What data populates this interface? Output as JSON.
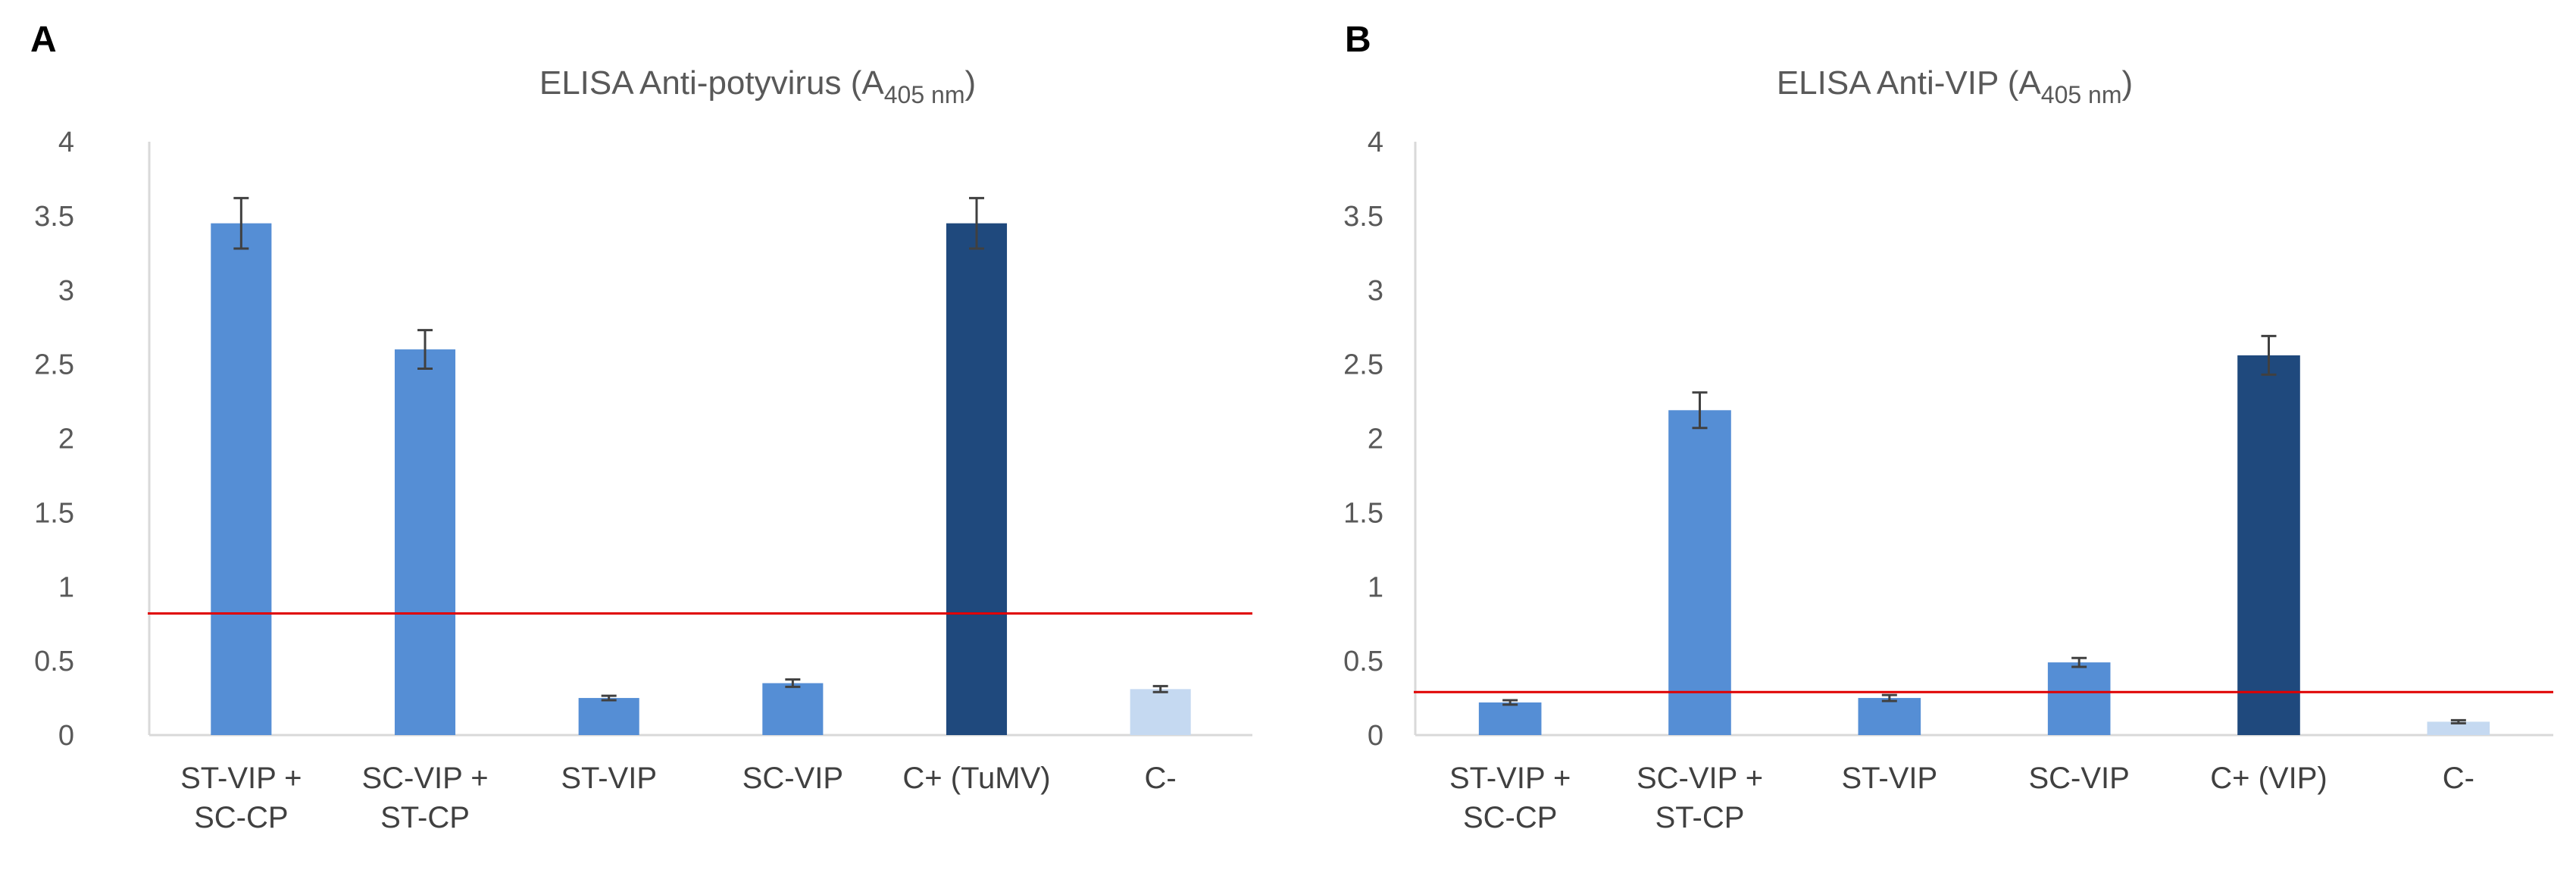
{
  "chart_data": [
    {
      "panel": "A",
      "type": "bar",
      "title_main": "ELISA Anti-potyvirus (A",
      "title_sub": "405 nm",
      "title_close": ")",
      "categories": [
        [
          "ST-VIP +",
          "SC-CP"
        ],
        [
          "SC-VIP +",
          "ST-CP"
        ],
        [
          "ST-VIP"
        ],
        [
          "SC-VIP"
        ],
        [
          "C+ (TuMV)"
        ],
        [
          "C-"
        ]
      ],
      "values": [
        3.45,
        2.6,
        0.25,
        0.35,
        3.45,
        0.31
      ],
      "errors": [
        0.17,
        0.13,
        0.015,
        0.025,
        0.17,
        0.02
      ],
      "bar_colors": [
        "#558ed5",
        "#558ed5",
        "#558ed5",
        "#558ed5",
        "#1f497d",
        "#c5d9f1"
      ],
      "threshold": 0.82,
      "threshold_color": "#e00000",
      "ylim": [
        0,
        4
      ],
      "yticks": [
        "0",
        "0.5",
        "1",
        "1.5",
        "2",
        "2.5",
        "3",
        "3.5",
        "4"
      ],
      "grid": false
    },
    {
      "panel": "B",
      "type": "bar",
      "title_main": "ELISA Anti-VIP (A",
      "title_sub": "405 nm",
      "title_close": ")",
      "categories": [
        [
          "ST-VIP +",
          "SC-CP"
        ],
        [
          "SC-VIP +",
          "ST-CP"
        ],
        [
          "ST-VIP"
        ],
        [
          "SC-VIP"
        ],
        [
          "C+ (VIP)"
        ],
        [
          "C-"
        ]
      ],
      "values": [
        0.22,
        2.19,
        0.25,
        0.49,
        2.56,
        0.09
      ],
      "errors": [
        0.015,
        0.12,
        0.02,
        0.03,
        0.13,
        0.01
      ],
      "bar_colors": [
        "#558ed5",
        "#558ed5",
        "#558ed5",
        "#558ed5",
        "#1f497d",
        "#c5d9f1"
      ],
      "threshold": 0.29,
      "threshold_color": "#e00000",
      "ylim": [
        0,
        4
      ],
      "yticks": [
        "0",
        "0.5",
        "1",
        "1.5",
        "2",
        "2.5",
        "3",
        "3.5",
        "4"
      ],
      "grid": false
    }
  ]
}
